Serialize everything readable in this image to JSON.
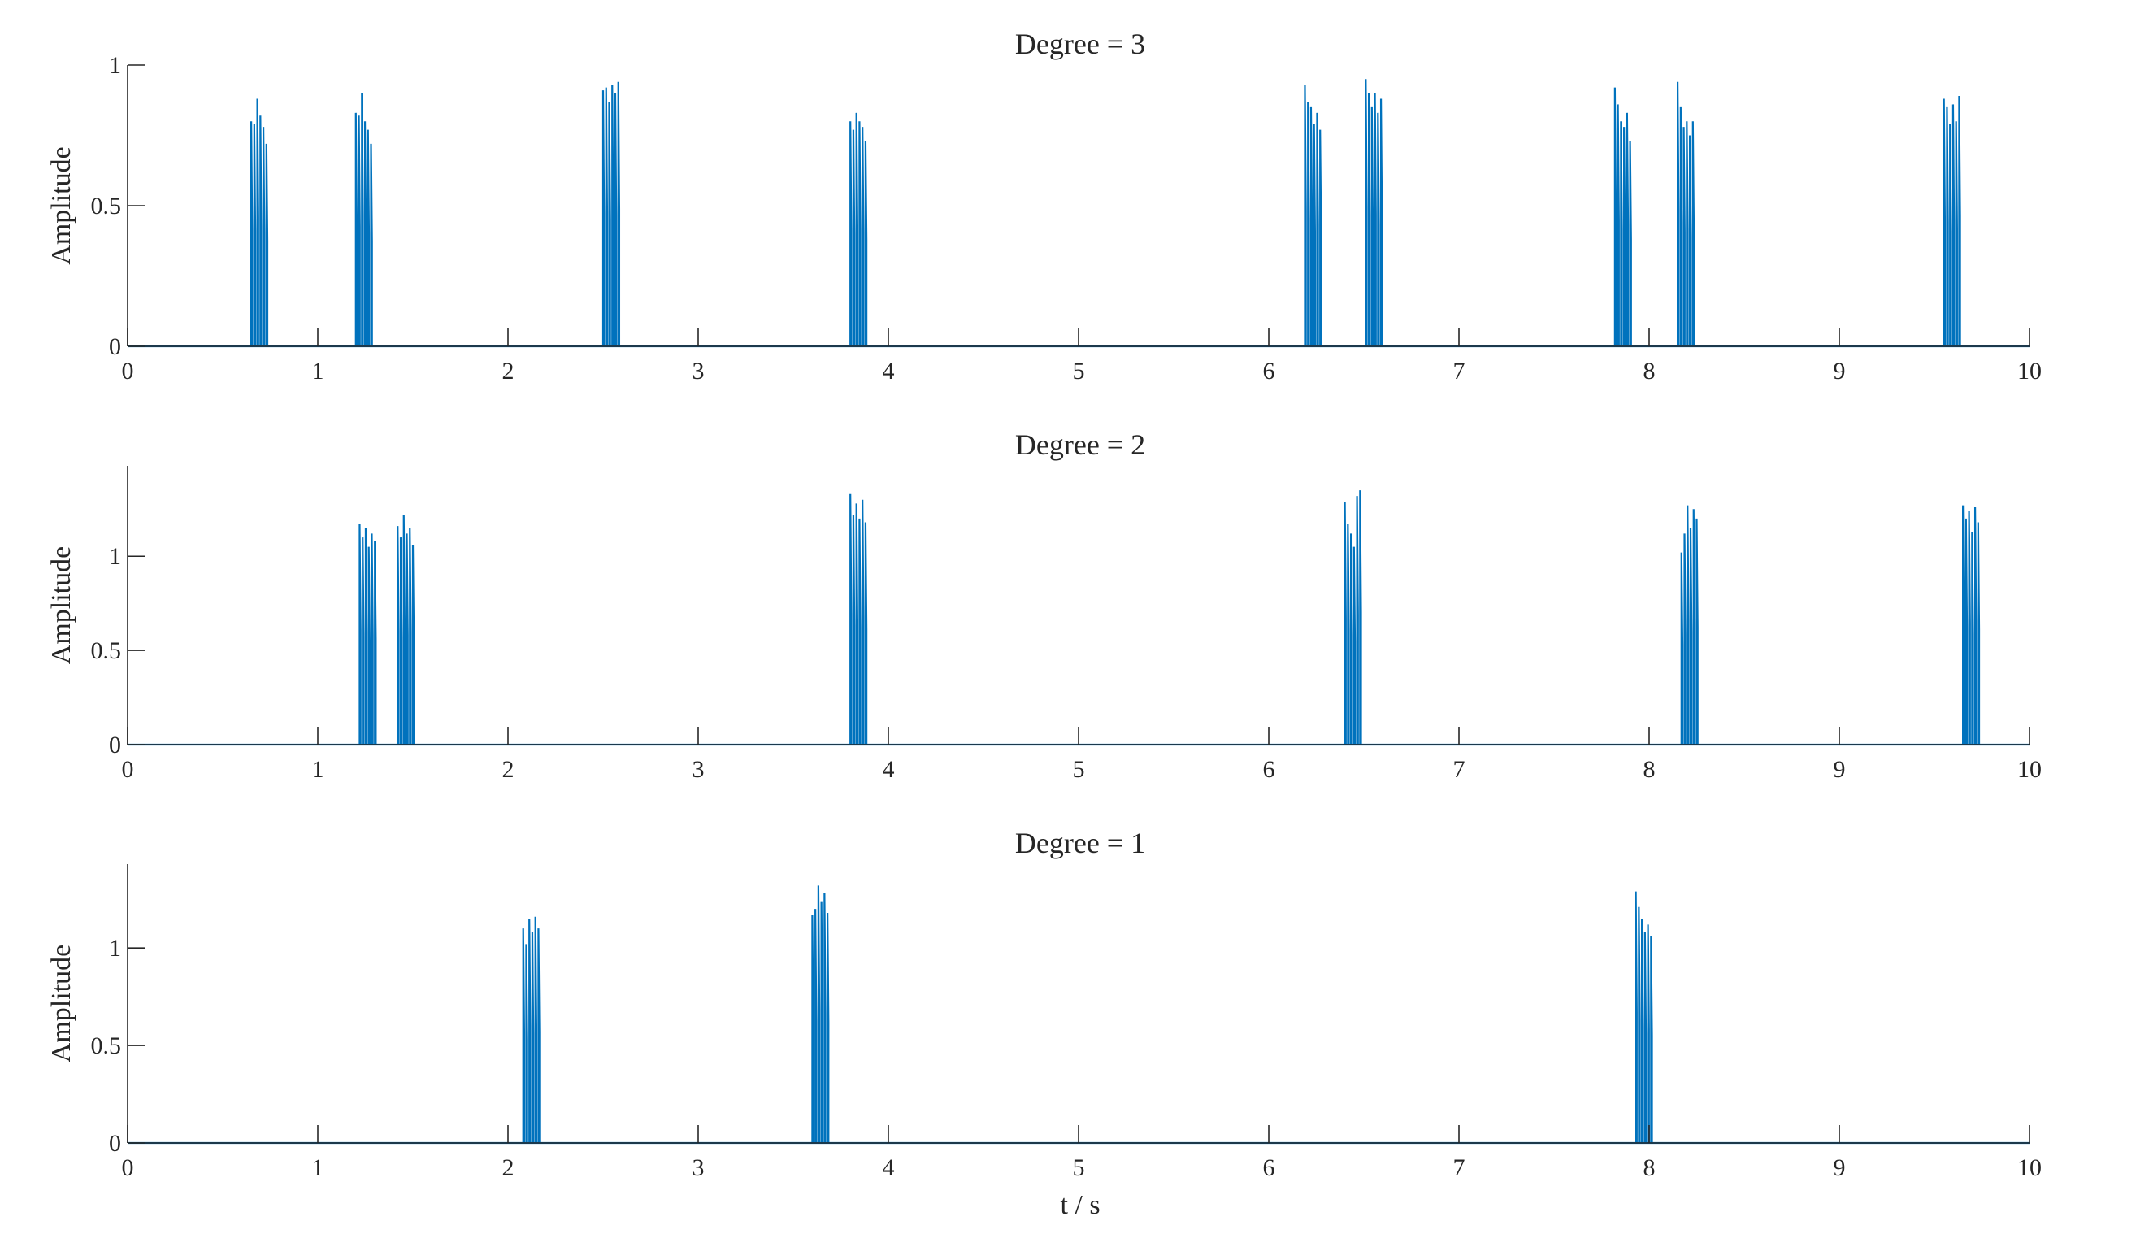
{
  "chart_data": [
    {
      "type": "line",
      "title": "Degree = 3",
      "xlabel": "",
      "ylabel": "Amplitude",
      "xlim": [
        0,
        10
      ],
      "ylim": [
        0,
        1
      ],
      "xticks": [
        0,
        1,
        2,
        3,
        4,
        5,
        6,
        7,
        8,
        9,
        10
      ],
      "xtick_labels": [
        "0",
        "1",
        "2",
        "3",
        "4",
        "5",
        "6",
        "7",
        "8",
        "9",
        "10"
      ],
      "yticks": [
        0,
        0.5,
        1
      ],
      "ytick_labels": [
        "0",
        "0.5",
        "1"
      ],
      "grid": false,
      "color": "#0072BD",
      "bursts": [
        {
          "t": 0.65,
          "peaks": [
            0.8,
            0.79,
            0.88,
            0.82,
            0.78,
            0.72
          ]
        },
        {
          "t": 1.2,
          "peaks": [
            0.83,
            0.82,
            0.9,
            0.8,
            0.77,
            0.72
          ]
        },
        {
          "t": 2.5,
          "peaks": [
            0.91,
            0.92,
            0.87,
            0.93,
            0.9,
            0.94
          ]
        },
        {
          "t": 3.8,
          "peaks": [
            0.8,
            0.77,
            0.83,
            0.8,
            0.78,
            0.73
          ]
        },
        {
          "t": 6.19,
          "peaks": [
            0.93,
            0.87,
            0.85,
            0.79,
            0.83,
            0.77
          ]
        },
        {
          "t": 6.51,
          "peaks": [
            0.95,
            0.9,
            0.85,
            0.9,
            0.83,
            0.88
          ]
        },
        {
          "t": 7.82,
          "peaks": [
            0.92,
            0.86,
            0.8,
            0.78,
            0.83,
            0.73
          ]
        },
        {
          "t": 8.15,
          "peaks": [
            0.94,
            0.85,
            0.78,
            0.8,
            0.75,
            0.8
          ]
        },
        {
          "t": 9.55,
          "peaks": [
            0.88,
            0.85,
            0.79,
            0.86,
            0.8,
            0.89
          ]
        }
      ]
    },
    {
      "type": "line",
      "title": "Degree = 2",
      "xlabel": "",
      "ylabel": "Amplitude",
      "xlim": [
        0,
        10
      ],
      "ylim": [
        0,
        1.48
      ],
      "xticks": [
        0,
        1,
        2,
        3,
        4,
        5,
        6,
        7,
        8,
        9,
        10
      ],
      "xtick_labels": [
        "0",
        "1",
        "2",
        "3",
        "4",
        "5",
        "6",
        "7",
        "8",
        "9",
        "10"
      ],
      "yticks": [
        0,
        0.5,
        1
      ],
      "ytick_labels": [
        "0",
        "0.5",
        "1"
      ],
      "grid": false,
      "color": "#0072BD",
      "bursts": [
        {
          "t": 1.22,
          "peaks": [
            1.17,
            1.1,
            1.15,
            1.05,
            1.12,
            1.08
          ]
        },
        {
          "t": 1.42,
          "peaks": [
            1.16,
            1.1,
            1.22,
            1.12,
            1.15,
            1.06
          ]
        },
        {
          "t": 3.8,
          "peaks": [
            1.33,
            1.22,
            1.28,
            1.2,
            1.3,
            1.18
          ]
        },
        {
          "t": 6.4,
          "peaks": [
            1.29,
            1.17,
            1.12,
            1.05,
            1.32,
            1.35
          ]
        },
        {
          "t": 8.17,
          "peaks": [
            1.02,
            1.12,
            1.27,
            1.15,
            1.25,
            1.2
          ]
        },
        {
          "t": 9.65,
          "peaks": [
            1.27,
            1.2,
            1.24,
            1.13,
            1.26,
            1.18
          ]
        }
      ]
    },
    {
      "type": "line",
      "title": "Degree = 1",
      "xlabel": "t / s",
      "ylabel": "Amplitude",
      "xlim": [
        0,
        10
      ],
      "ylim": [
        0,
        1.43
      ],
      "xticks": [
        0,
        1,
        2,
        3,
        4,
        5,
        6,
        7,
        8,
        9,
        10
      ],
      "xtick_labels": [
        "0",
        "1",
        "2",
        "3",
        "4",
        "5",
        "6",
        "7",
        "8",
        "9",
        "10"
      ],
      "yticks": [
        0,
        0.5,
        1
      ],
      "ytick_labels": [
        "0",
        "0.5",
        "1"
      ],
      "grid": false,
      "color": "#0072BD",
      "bursts": [
        {
          "t": 2.08,
          "peaks": [
            1.1,
            1.02,
            1.15,
            1.08,
            1.16,
            1.1
          ]
        },
        {
          "t": 3.6,
          "peaks": [
            1.17,
            1.2,
            1.32,
            1.24,
            1.28,
            1.18
          ]
        },
        {
          "t": 7.93,
          "peaks": [
            1.29,
            1.21,
            1.15,
            1.08,
            1.12,
            1.06
          ]
        }
      ]
    }
  ]
}
